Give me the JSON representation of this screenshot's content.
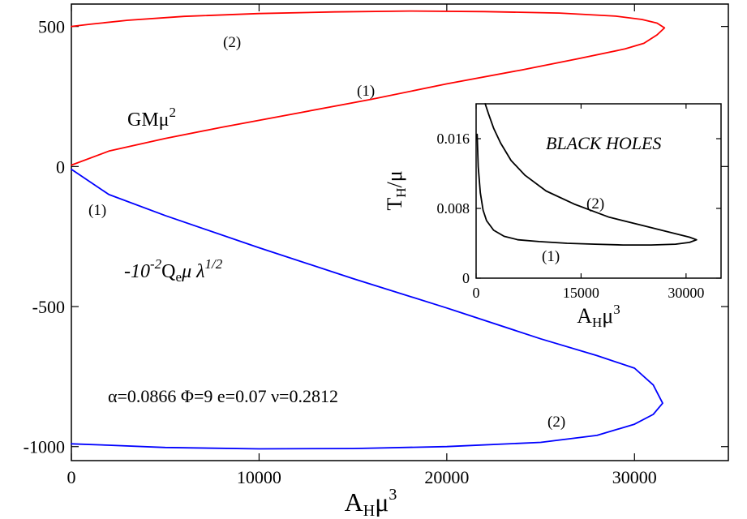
{
  "chart_data": [
    {
      "type": "line",
      "title": "",
      "xlabel_main": "A",
      "xlabel_sub": "H",
      "xlabel_tail": "μ",
      "xlabel_sup": "3",
      "ylabel": "",
      "xlim": [
        0,
        35000
      ],
      "ylim": [
        -1050,
        580
      ],
      "x_ticks": [
        0,
        10000,
        20000,
        30000
      ],
      "x_tick_labels": [
        "0",
        "10000",
        "20000",
        "30000"
      ],
      "y_ticks": [
        -1000,
        -500,
        0,
        500
      ],
      "y_tick_labels": [
        "-1000",
        "-500",
        "0",
        "500"
      ],
      "grid": false,
      "legend": "none",
      "series": [
        {
          "color": "#ff0000",
          "x": [
            0,
            2000,
            5000,
            8000,
            12000,
            16000,
            20000,
            24000,
            27000,
            29500,
            30500,
            31200,
            31600,
            31200,
            30400,
            29000,
            26000,
            22000,
            18000,
            14000,
            10000,
            6000,
            3000,
            1000,
            0
          ],
          "y": [
            5,
            55,
            100,
            140,
            190,
            240,
            295,
            345,
            385,
            420,
            440,
            470,
            495,
            512,
            525,
            537,
            548,
            553,
            555,
            552,
            546,
            536,
            522,
            508,
            500
          ]
        },
        {
          "color": "#0000ff",
          "x": [
            0,
            2000,
            5000,
            10000,
            15000,
            20000,
            25000,
            28000,
            30000,
            31000,
            31500,
            31000,
            30000,
            28000,
            25000,
            20000,
            15000,
            10000,
            5000,
            2000,
            0
          ],
          "y": [
            -10,
            -100,
            -175,
            -290,
            -400,
            -505,
            -615,
            -675,
            -720,
            -780,
            -845,
            -885,
            -920,
            -960,
            -985,
            -1000,
            -1007,
            -1008,
            -1003,
            -995,
            -990
          ]
        }
      ],
      "annotations": {
        "red_upper": "(2)",
        "red_lower": "(1)",
        "gm_main": "GMμ",
        "gm_sup": "2",
        "blue_upper": "(1)",
        "q_pre": "-10",
        "q_pre_sup": "-2",
        "q_main": "Q",
        "q_sub": "e",
        "q_tail": "μ λ",
        "q_sup": "1/2",
        "params": "α=0.0866 Φ=9 e=0.07 ν=0.2812",
        "blue_lower": "(2)"
      }
    },
    {
      "type": "line",
      "title": "BLACK HOLES",
      "xlabel_main": "A",
      "xlabel_sub": "H",
      "xlabel_tail": "μ",
      "xlabel_sup": "3",
      "ylabel_main": "T",
      "ylabel_sub": "H",
      "ylabel_tail": "/μ",
      "xlim": [
        0,
        35000
      ],
      "ylim": [
        0,
        0.02
      ],
      "x_ticks": [
        0,
        15000,
        30000
      ],
      "x_tick_labels": [
        "0",
        "15000",
        "30000"
      ],
      "y_ticks": [
        0,
        0.008,
        0.016
      ],
      "y_tick_labels": [
        "0",
        "0.008",
        "0.016"
      ],
      "grid": false,
      "legend": "none",
      "series": [
        {
          "color": "#000000",
          "x": [
            150,
            300,
            600,
            1000,
            1500,
            2500,
            4000,
            6000,
            9000,
            13000,
            17000,
            21000,
            25000,
            28500,
            30500,
            31500,
            30500,
            28000,
            24000,
            19000,
            14000,
            10000,
            7000,
            5000,
            3500,
            2500,
            1800,
            1300
          ],
          "y": [
            0.0165,
            0.0128,
            0.0098,
            0.0078,
            0.0066,
            0.0055,
            0.0048,
            0.0044,
            0.0042,
            0.004,
            0.0039,
            0.0038,
            0.0038,
            0.0039,
            0.0041,
            0.0044,
            0.0047,
            0.0052,
            0.006,
            0.007,
            0.0085,
            0.01,
            0.0118,
            0.0135,
            0.0155,
            0.0172,
            0.0188,
            0.02
          ]
        }
      ],
      "annotations": {
        "branch2": "(2)",
        "branch1": "(1)"
      }
    }
  ]
}
